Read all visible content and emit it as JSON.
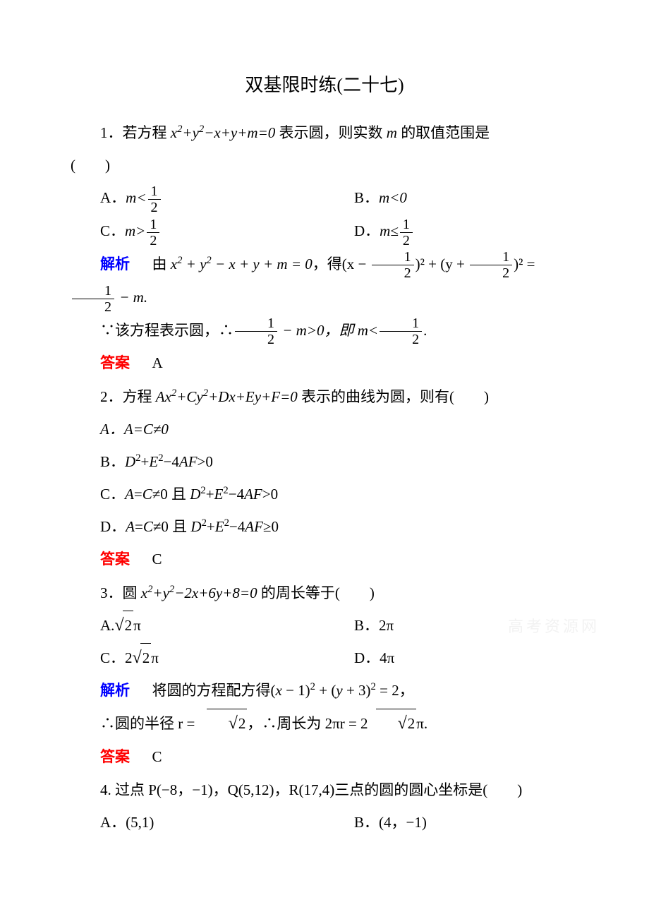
{
  "title": "双基限时练(二十七)",
  "labels": {
    "analysis": "解析",
    "answer": "答案"
  },
  "colors": {
    "analysis": "#0000ff",
    "answer": "#ff0000",
    "text": "#000000",
    "background": "#ffffff",
    "watermark": "#f2f2f2"
  },
  "typography": {
    "title_fontsize": 26,
    "body_fontsize": 21,
    "line_height": 2.2,
    "font_family_cn": "SimSun",
    "font_family_math": "Times New Roman"
  },
  "q1": {
    "stem_part1": "1．若方程 ",
    "stem_math": "x²+y²−x+y+m=0",
    "stem_part2": " 表示圆，则实数 ",
    "stem_var": "m",
    "stem_part3": " 的取值范围是",
    "paren": "(　　)",
    "optA_prefix": "A．",
    "optA_math_lhs": "m<",
    "optA_frac_num": "1",
    "optA_frac_den": "2",
    "optB_prefix": "B．",
    "optB_math": "m<0",
    "optC_prefix": "C．",
    "optC_math_lhs": "m>",
    "optC_frac_num": "1",
    "optC_frac_den": "2",
    "optD_prefix": "D．",
    "optD_math_lhs": "m≤",
    "optD_frac_num": "1",
    "optD_frac_den": "2",
    "analysis_p1": "由 ",
    "analysis_eq1": "x² + y² − x + y + m = 0",
    "analysis_p2": "，得",
    "analysis_p3": "(x − ",
    "analysis_half_num": "1",
    "analysis_half_den": "2",
    "analysis_p4": ")² + (y + ",
    "analysis_p5": ")² = ",
    "analysis_p6": " − m.",
    "analysis_line2_p1": "∵该方程表示圆，∴",
    "analysis_line2_p2": " − m>0，即 m<",
    "analysis_line2_p3": ".",
    "answer": "A"
  },
  "q2": {
    "stem_part1": "2．方程 ",
    "stem_math": "Ax²+Cy²+Dx+Ey+F=0",
    "stem_part2": " 表示的曲线为圆，则有(　　)",
    "optA": "A．A=C≠0",
    "optB": "B．D²+E²−4AF>0",
    "optC": "C．A=C≠0 且 D²+E²−4AF>0",
    "optD": "D．A=C≠0 且 D²+E²−4AF≥0",
    "answer": "C"
  },
  "q3": {
    "stem_part1": "3．圆 ",
    "stem_math": "x²+y²−2x+6y+8=0",
    "stem_part2": " 的周长等于(　　)",
    "optA_prefix": "A.",
    "optA_sqrt_arg": "2",
    "optA_suffix": "π",
    "optB": "B．2π",
    "optC_prefix": "C．2",
    "optC_sqrt_arg": "2",
    "optC_suffix": "π",
    "optD": "D．4π",
    "analysis_p1": "将圆的方程配方得",
    "analysis_eq": "(x − 1)² + (y + 3)² = 2",
    "analysis_p2": "，",
    "analysis_line2_p1": "∴圆的半径 r = ",
    "analysis_line2_sqrt": "2",
    "analysis_line2_p2": "，∴周长为 2πr = 2",
    "analysis_line2_p3": "π.",
    "answer": "C"
  },
  "q4": {
    "stem": "4. 过点 P(−8，−1)，Q(5,12)，R(17,4)三点的圆的圆心坐标是(　　)",
    "optA": "A．(5,1)",
    "optB": "B．(4，−1)"
  },
  "watermark": "高考资源网"
}
